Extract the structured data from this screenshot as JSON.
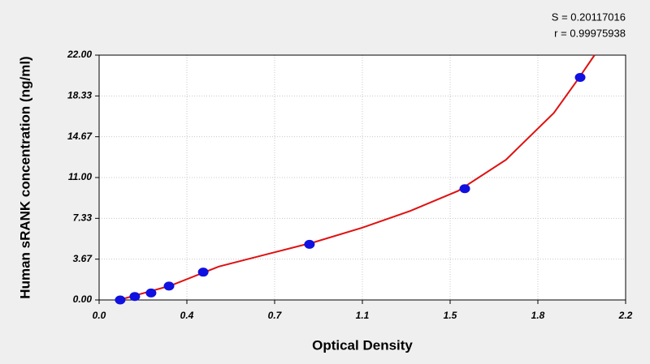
{
  "chart_data": {
    "type": "scatter",
    "annotations": [
      "S = 0.20117016",
      "r = 0.99975938"
    ],
    "x_label": "Optical Density",
    "y_label": "Human sRANK concentration (ng/ml)",
    "points": {
      "x": [
        0.088,
        0.149,
        0.217,
        0.292,
        0.435,
        0.879,
        1.528,
        2.01
      ],
      "values": [
        0,
        0.31,
        0.63,
        1.25,
        2.5,
        5,
        10,
        20
      ],
      "color": "#1010e0"
    },
    "curve": {
      "x": [
        0.1,
        0.3,
        0.5,
        0.7,
        0.9,
        1.1,
        1.3,
        1.5,
        1.7,
        1.9,
        2.0,
        2.07
      ],
      "values": [
        0.1,
        1.3,
        3.0,
        4.1,
        5.2,
        6.5,
        8.0,
        9.8,
        12.6,
        16.8,
        19.8,
        22
      ],
      "color": "#e01010"
    },
    "xlim": [
      0,
      2.2
    ],
    "xticks": [
      {
        "value": 0,
        "label": "0.0"
      },
      {
        "value": 0.3667,
        "label": "0.4"
      },
      {
        "value": 0.7333,
        "label": "0.7"
      },
      1.1,
      {
        "value": 1.4667,
        "label": "1.5"
      },
      {
        "value": 1.8333,
        "label": "1.8"
      },
      2.2
    ],
    "ylim": [
      0,
      22
    ],
    "yticks": [
      {
        "value": 0,
        "label": "0.00"
      },
      {
        "value": 3.6667,
        "label": "3.67"
      },
      {
        "value": 7.3333,
        "label": "7.33"
      },
      {
        "value": 11,
        "label": "11.00"
      },
      {
        "value": 14.6667,
        "label": "14.67"
      },
      {
        "value": 18.3333,
        "label": "18.33"
      },
      {
        "value": 22,
        "label": "22.00"
      }
    ],
    "grid": true
  }
}
